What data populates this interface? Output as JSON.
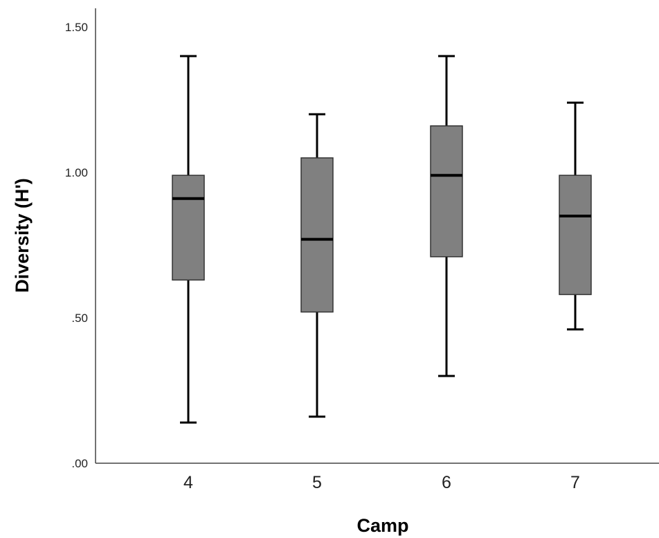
{
  "chart_data": {
    "type": "box",
    "title": "",
    "xlabel": "Camp",
    "ylabel": "Diversity (H')",
    "ylim": [
      0,
      1.5
    ],
    "yticks": [
      ".00",
      ".50",
      "1.00",
      "1.50"
    ],
    "yticks_values": [
      0,
      0.5,
      1.0,
      1.5
    ],
    "categories": [
      "4",
      "5",
      "6",
      "7"
    ],
    "series": [
      {
        "boxes": [
          {
            "min": 0.14,
            "q1": 0.63,
            "median": 0.91,
            "q3": 0.99,
            "max": 1.4
          },
          {
            "min": 0.16,
            "q1": 0.52,
            "median": 0.77,
            "q3": 1.05,
            "max": 1.2
          },
          {
            "min": 0.3,
            "q1": 0.71,
            "median": 0.99,
            "q3": 1.16,
            "max": 1.4
          },
          {
            "min": 0.46,
            "q1": 0.58,
            "median": 0.85,
            "q3": 0.99,
            "max": 1.24
          }
        ]
      }
    ],
    "grid": false,
    "box_fill": "#808080",
    "line_color": "#000000"
  }
}
